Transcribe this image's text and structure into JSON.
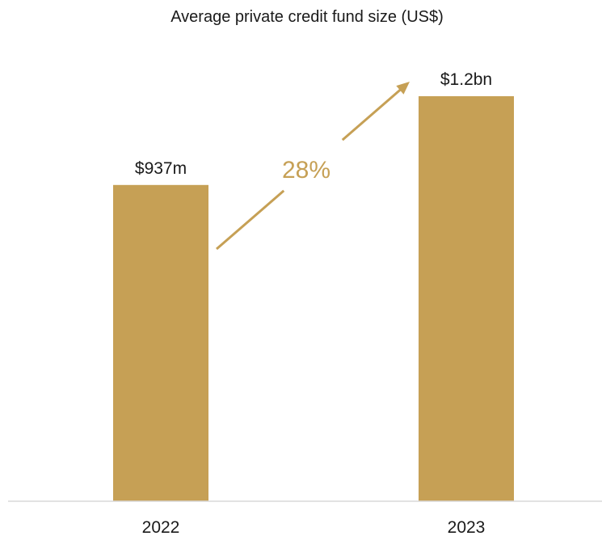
{
  "colors": {
    "bar": "#C6A055",
    "arrow": "#C6A055",
    "growth_text": "#C6A055",
    "axis": "#d9d9d9",
    "text": "#1a1a1a"
  },
  "chart_data": {
    "type": "bar",
    "title": "Average private credit fund size (US$)",
    "xlabel": "",
    "ylabel": "",
    "categories": [
      "2022",
      "2023"
    ],
    "values": [
      937,
      1200
    ],
    "value_unit": "US$ millions",
    "data_labels": [
      "$937m",
      "$1.2bn"
    ],
    "ylim": [
      0,
      1200
    ],
    "grid": false,
    "legend": "none",
    "annotations": [
      {
        "type": "growth-arrow",
        "from_category": "2022",
        "to_category": "2023",
        "label": "28%"
      }
    ]
  }
}
